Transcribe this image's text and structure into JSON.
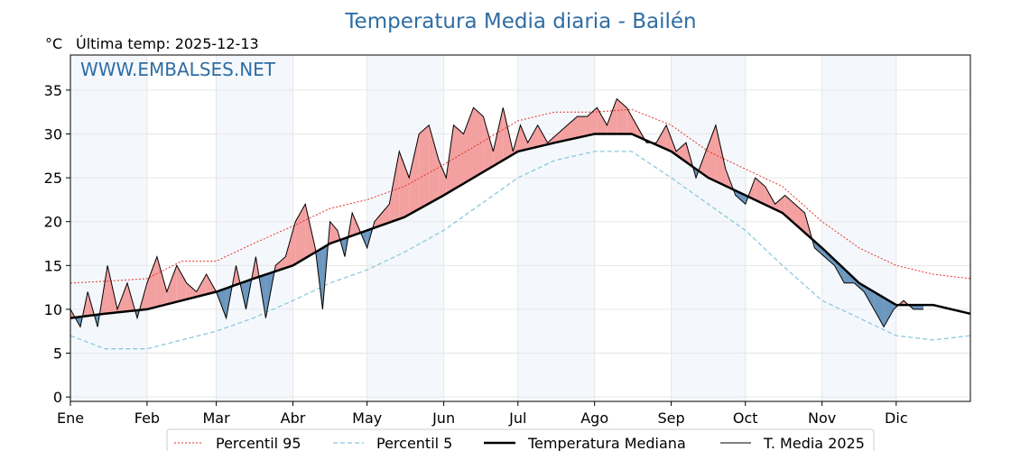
{
  "chart_data": {
    "type": "line",
    "title": "Temperatura Media diaria - Bailén",
    "unit_label": "°C",
    "last_temp_label": "Última temp: 2025-12-13",
    "watermark": "WWW.EMBALSES.NET",
    "ylim": [
      -0.5,
      39
    ],
    "yticks": [
      0,
      5,
      10,
      15,
      20,
      25,
      30,
      35
    ],
    "months": [
      "Ene",
      "Feb",
      "Mar",
      "Abr",
      "May",
      "Jun",
      "Jul",
      "Ago",
      "Sep",
      "Oct",
      "Nov",
      "Dic"
    ],
    "month_start_days": [
      1,
      32,
      60,
      91,
      121,
      152,
      182,
      213,
      244,
      274,
      305,
      335
    ],
    "legend": [
      "Percentil 95",
      "Percentil 5",
      "Temperatura Mediana",
      "T. Media 2025"
    ],
    "colors": {
      "p95": "#e8332a",
      "p5": "#8ec8de",
      "median": "#000000",
      "current": "#000000",
      "above": "#f3a0a0",
      "below": "#6c97be",
      "title": "#2e6da4",
      "band": "#f4f8fc"
    },
    "series": {
      "p95": {
        "day": [
          1,
          15,
          32,
          46,
          60,
          75,
          91,
          106,
          121,
          136,
          152,
          167,
          182,
          197,
          213,
          228,
          244,
          259,
          274,
          289,
          305,
          320,
          335,
          350,
          365
        ],
        "value": [
          13,
          13.2,
          13.5,
          15.5,
          15.5,
          17.5,
          19.5,
          21.5,
          22.5,
          24,
          26.5,
          29,
          31.5,
          32.5,
          32.5,
          32.8,
          31,
          28,
          26,
          24,
          20,
          17,
          15,
          14,
          13.5
        ]
      },
      "p5": {
        "day": [
          1,
          15,
          32,
          46,
          60,
          75,
          91,
          106,
          121,
          136,
          152,
          167,
          182,
          197,
          213,
          228,
          244,
          259,
          274,
          289,
          305,
          320,
          335,
          350,
          365
        ],
        "value": [
          7,
          5.5,
          5.5,
          6.5,
          7.5,
          9,
          11,
          13,
          14.5,
          16.5,
          19,
          22,
          25,
          27,
          28,
          28,
          25,
          22,
          19,
          15,
          11,
          9,
          7,
          6.5,
          7
        ]
      },
      "median": {
        "day": [
          1,
          15,
          32,
          46,
          60,
          75,
          91,
          106,
          121,
          136,
          152,
          167,
          182,
          197,
          213,
          228,
          244,
          259,
          274,
          289,
          305,
          320,
          335,
          350,
          365
        ],
        "value": [
          9,
          9.5,
          10,
          11,
          12,
          13.5,
          15,
          17.5,
          19,
          20.5,
          23,
          25.5,
          28,
          29,
          30,
          30,
          28,
          25,
          23,
          21,
          17,
          13,
          10.5,
          10.5,
          9.5
        ]
      },
      "current": {
        "day": [
          1,
          5,
          8,
          12,
          16,
          20,
          24,
          28,
          32,
          36,
          40,
          44,
          48,
          52,
          56,
          60,
          64,
          68,
          72,
          76,
          80,
          84,
          88,
          92,
          96,
          100,
          103,
          106,
          109,
          112,
          115,
          118,
          121,
          124,
          127,
          130,
          134,
          138,
          142,
          146,
          150,
          153,
          156,
          160,
          164,
          168,
          172,
          176,
          180,
          183,
          186,
          190,
          194,
          198,
          202,
          206,
          210,
          214,
          218,
          222,
          226,
          230,
          234,
          238,
          242,
          246,
          250,
          254,
          258,
          262,
          266,
          270,
          274,
          278,
          282,
          286,
          290,
          294,
          298,
          302,
          306,
          310,
          314,
          318,
          322,
          326,
          330,
          334,
          338,
          342,
          346
        ],
        "value": [
          10,
          8,
          12,
          8,
          15,
          10,
          13,
          9,
          13,
          16,
          12,
          15,
          13,
          12,
          14,
          12,
          9,
          15,
          10,
          16,
          9,
          15,
          16,
          20,
          22,
          17,
          10,
          20,
          19,
          16,
          21,
          19,
          17,
          20,
          21,
          22,
          28,
          25,
          30,
          31,
          27,
          25,
          31,
          30,
          33,
          32,
          28,
          33,
          28,
          31,
          29,
          31,
          29,
          30,
          31,
          32,
          32,
          33,
          31,
          34,
          33,
          31,
          29,
          29,
          31,
          28,
          29,
          25,
          28,
          31,
          26,
          23,
          22,
          25,
          24,
          22,
          23,
          22,
          21,
          17,
          16,
          15,
          13,
          13,
          12,
          10,
          8,
          10,
          11,
          10,
          10
        ]
      }
    }
  }
}
